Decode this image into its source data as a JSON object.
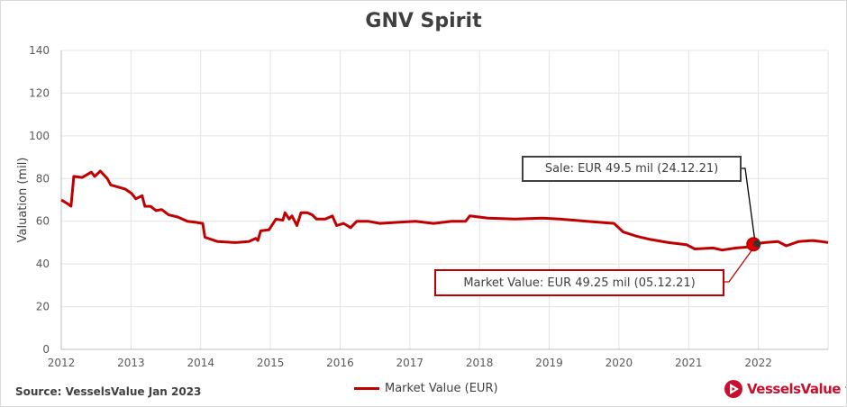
{
  "chart_data": {
    "type": "line",
    "title": "GNV Spirit",
    "xlabel": "",
    "ylabel": "Valuation (mil)",
    "xlim": [
      2012,
      2023
    ],
    "ylim": [
      0,
      140
    ],
    "x_ticks": [
      "2012",
      "2013",
      "2014",
      "2015",
      "2016",
      "2017",
      "2018",
      "2019",
      "2020",
      "2021",
      "2022"
    ],
    "y_ticks": [
      "0",
      "20",
      "40",
      "60",
      "80",
      "100",
      "120",
      "140"
    ],
    "grid": true,
    "legend_position": "bottom-center",
    "series": [
      {
        "name": "Market Value (EUR)",
        "color": "#c00000",
        "x": [
          2012.0,
          2012.1,
          2012.14,
          2012.18,
          2012.3,
          2012.43,
          2012.48,
          2012.56,
          2012.66,
          2012.71,
          2012.82,
          2012.92,
          2013.01,
          2013.07,
          2013.16,
          2013.2,
          2013.28,
          2013.36,
          2013.44,
          2013.54,
          2013.67,
          2013.81,
          2013.93,
          2014.03,
          2014.06,
          2014.24,
          2014.5,
          2014.69,
          2014.79,
          2014.82,
          2014.86,
          2014.98,
          2015.08,
          2015.18,
          2015.21,
          2015.27,
          2015.31,
          2015.38,
          2015.44,
          2015.53,
          2015.6,
          2015.66,
          2015.79,
          2015.89,
          2015.95,
          2016.05,
          2016.15,
          2016.24,
          2016.4,
          2016.57,
          2016.83,
          2017.08,
          2017.34,
          2017.6,
          2017.8,
          2017.86,
          2018.12,
          2018.51,
          2018.9,
          2019.15,
          2019.54,
          2019.93,
          2020.06,
          2020.25,
          2020.45,
          2020.71,
          2020.97,
          2021.09,
          2021.35,
          2021.48,
          2021.68,
          2021.87,
          2021.93,
          2022.09,
          2022.28,
          2022.4,
          2022.58,
          2022.78,
          2022.9,
          2023.0
        ],
        "values": [
          70,
          68,
          67,
          81,
          80.5,
          83,
          81,
          83.5,
          80,
          77,
          76,
          75,
          73,
          70.5,
          72,
          67,
          67,
          65,
          65.5,
          63,
          62,
          60,
          59.5,
          59,
          52.5,
          50.5,
          50,
          50.5,
          52,
          51,
          55.5,
          56,
          61,
          60.5,
          64,
          61,
          62.5,
          58,
          64,
          64,
          63,
          61,
          61,
          62.5,
          58,
          59,
          57,
          60,
          60,
          59,
          59.5,
          60,
          59,
          60,
          60,
          62.5,
          61.5,
          61,
          61.5,
          61,
          60,
          59,
          55,
          53,
          51.5,
          50,
          49,
          47,
          47.5,
          46.5,
          47.5,
          48,
          49.25,
          50,
          50.5,
          48.5,
          50.5,
          51,
          50.5,
          50
        ]
      }
    ],
    "annotations": [
      {
        "label": "Sale: EUR 49.5 mil (24.12.21)",
        "x": 2021.98,
        "y": 49.5
      },
      {
        "label": "Market Value: EUR 49.25 mil (05.12.21)",
        "x": 2021.93,
        "y": 49.25
      }
    ]
  },
  "footer": {
    "source": "Source: VesselsValue Jan 2023",
    "legend_label": "Market Value (EUR)",
    "logo_text": "VesselsValue",
    "logo_tm": "™"
  }
}
